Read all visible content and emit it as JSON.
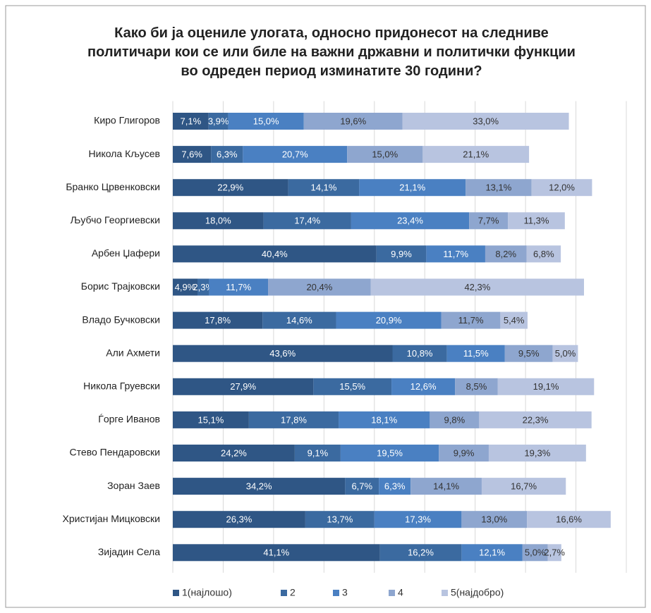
{
  "chart_data": {
    "type": "stacked-bar-horizontal",
    "title": "Како би ја оцениле улогата, односно придонесот на следниве политичари кои се или биле на важни државни и политички функции во одреден период изминатите 30 години?",
    "categories": [
      "Киро Глигоров",
      "Никола Кљусев",
      "Бранко Црвенковски",
      "Љубчо Георгиевски",
      "Арбен Џафери",
      "Борис Трајковски",
      "Владо Бучковски",
      "Али Ахмети",
      "Никола Груевски",
      "Ѓорге Иванов",
      "Стево Пендаровски",
      "Зоран Заев",
      "Христијан Мицковски",
      "Зијадин Села"
    ],
    "xlim": [
      0,
      90
    ],
    "xticks": [
      0,
      10,
      20,
      30,
      40,
      50,
      60,
      70,
      80,
      90
    ],
    "grid": true,
    "legend": "bottom",
    "series": [
      {
        "name": "1(најлошо)",
        "color": "#2f5685",
        "values": [
          7.1,
          7.6,
          22.9,
          18.0,
          40.4,
          4.9,
          17.8,
          43.6,
          27.9,
          15.1,
          24.2,
          34.2,
          26.3,
          41.1
        ],
        "value_labels": [
          "7,1%",
          "7,6%",
          "22,9%",
          "18,0%",
          "40,4%",
          "4,9%",
          "17,8%",
          "43,6%",
          "27,9%",
          "15,1%",
          "24,2%",
          "34,2%",
          "26,3%",
          "41,1%"
        ]
      },
      {
        "name": "2",
        "color": "#3b6aa0",
        "values": [
          3.9,
          6.3,
          14.1,
          17.4,
          9.9,
          2.3,
          14.6,
          10.8,
          15.5,
          17.8,
          9.1,
          6.7,
          13.7,
          16.2
        ],
        "value_labels": [
          "3,9%",
          "6,3%",
          "14,1%",
          "17,4%",
          "9,9%",
          "2,3%",
          "14,6%",
          "10,8%",
          "15,5%",
          "17,8%",
          "9,1%",
          "6,7%",
          "13,7%",
          "16,2%"
        ]
      },
      {
        "name": "3",
        "color": "#4a80c2",
        "values": [
          15.0,
          20.7,
          21.1,
          23.4,
          11.7,
          11.7,
          20.9,
          11.5,
          12.6,
          18.1,
          19.5,
          6.3,
          17.3,
          12.1
        ],
        "value_labels": [
          "15,0%",
          "20,7%",
          "21,1%",
          "23,4%",
          "11,7%",
          "11,7%",
          "20,9%",
          "11,5%",
          "12,6%",
          "18,1%",
          "19,5%",
          "6,3%",
          "17,3%",
          "12,1%"
        ]
      },
      {
        "name": "4",
        "color": "#8ea6cf",
        "values": [
          19.6,
          15.0,
          13.1,
          7.7,
          8.2,
          20.4,
          11.7,
          9.5,
          8.5,
          9.8,
          9.9,
          14.1,
          13.0,
          5.0
        ],
        "value_labels": [
          "19,6%",
          "15,0%",
          "13,1%",
          "7,7%",
          "8,2%",
          "20,4%",
          "11,7%",
          "9,5%",
          "8,5%",
          "9,8%",
          "9,9%",
          "14,1%",
          "13,0%",
          "5,0%"
        ]
      },
      {
        "name": "5(најдобро)",
        "color": "#b8c4e0",
        "values": [
          33.0,
          21.1,
          12.0,
          11.3,
          6.8,
          42.3,
          5.4,
          5.0,
          19.1,
          22.3,
          19.3,
          16.7,
          16.6,
          2.7
        ],
        "value_labels": [
          "33,0%",
          "21,1%",
          "12,0%",
          "11,3%",
          "6,8%",
          "42,3%",
          "5,4%",
          "5,0%",
          "19,1%",
          "22,3%",
          "19,3%",
          "16,7%",
          "16,6%",
          "2,7%"
        ]
      }
    ]
  }
}
